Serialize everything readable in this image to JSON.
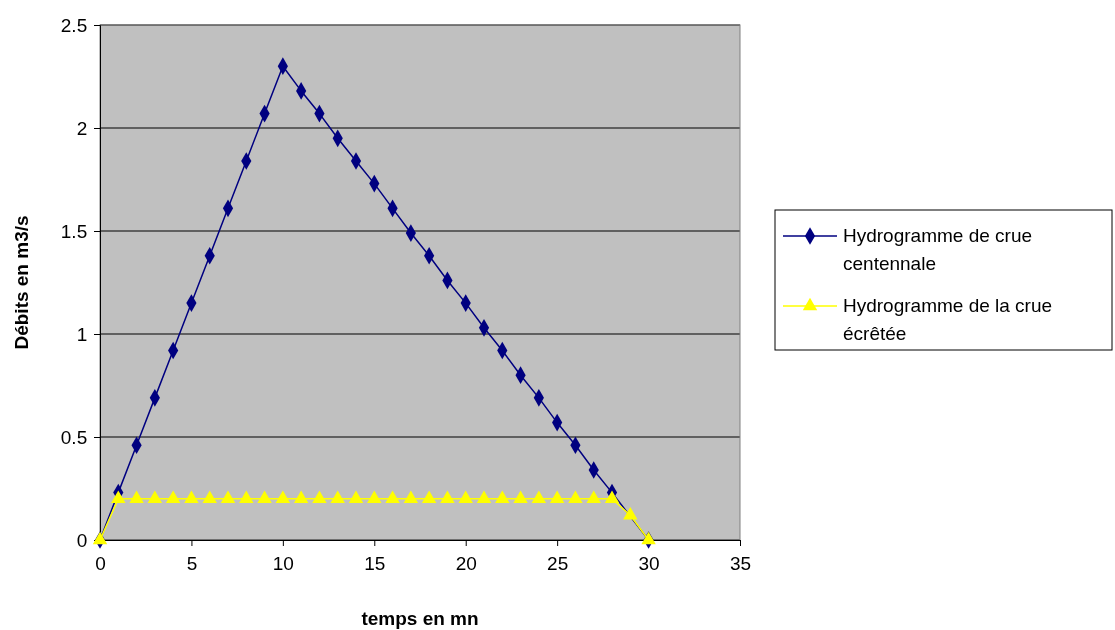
{
  "chart_data": {
    "type": "line",
    "xlabel": "temps en mn",
    "ylabel": "Débits en m3/s",
    "xlim": [
      0,
      35
    ],
    "xticks": [
      0,
      5,
      10,
      15,
      20,
      25,
      30,
      35
    ],
    "ylim": [
      0,
      2.5
    ],
    "yticks": [
      0,
      0.5,
      1,
      1.5,
      2,
      2.5
    ],
    "grid": "y",
    "legend": "right",
    "series": [
      {
        "name": "Hydrogramme de crue centennale",
        "color": "#000080",
        "marker": "diamond",
        "x": [
          0,
          1,
          2,
          3,
          4,
          5,
          6,
          7,
          8,
          9,
          10,
          11,
          12,
          13,
          14,
          15,
          16,
          17,
          18,
          19,
          20,
          21,
          22,
          23,
          24,
          25,
          26,
          27,
          28,
          29,
          30
        ],
        "values": [
          0,
          0.23,
          0.46,
          0.69,
          0.92,
          1.15,
          1.38,
          1.61,
          1.84,
          2.07,
          2.3,
          2.18,
          2.07,
          1.95,
          1.84,
          1.73,
          1.61,
          1.49,
          1.38,
          1.26,
          1.15,
          1.03,
          0.92,
          0.8,
          0.69,
          0.57,
          0.46,
          0.34,
          0.23,
          null,
          0
        ]
      },
      {
        "name": "Hydrogramme de la crue écrêtée",
        "color": "#ffff00",
        "marker": "triangle",
        "x": [
          0,
          1,
          2,
          3,
          4,
          5,
          6,
          7,
          8,
          9,
          10,
          11,
          12,
          13,
          14,
          15,
          16,
          17,
          18,
          19,
          20,
          21,
          22,
          23,
          24,
          25,
          26,
          27,
          28,
          29,
          30
        ],
        "values": [
          0,
          0.2,
          0.2,
          0.2,
          0.2,
          0.2,
          0.2,
          0.2,
          0.2,
          0.2,
          0.2,
          0.2,
          0.2,
          0.2,
          0.2,
          0.2,
          0.2,
          0.2,
          0.2,
          0.2,
          0.2,
          0.2,
          0.2,
          0.2,
          0.2,
          0.2,
          0.2,
          0.2,
          0.2,
          0.12,
          0
        ]
      }
    ]
  }
}
